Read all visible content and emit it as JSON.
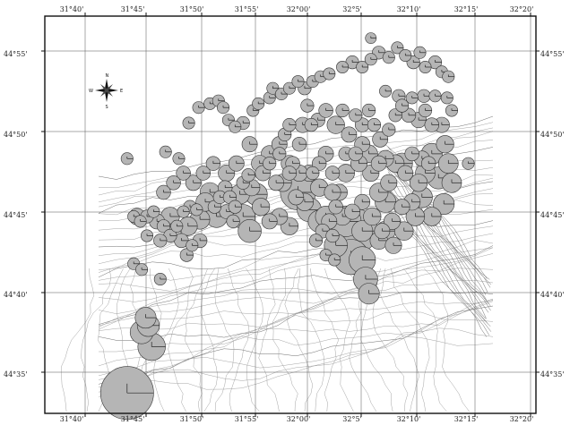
{
  "map": {
    "lon_ticks": [
      "31°40'",
      "31°45'",
      "31°50'",
      "31°55'",
      "32°00'",
      "32°5'",
      "32°10'",
      "32°15'",
      "32°20'"
    ],
    "lat_ticks": [
      "44°55'",
      "44°50'",
      "44°45'",
      "44°40'",
      "44°35'"
    ],
    "compass": {
      "n": "N",
      "s": "S",
      "e": "E",
      "w": "W"
    },
    "colors": {
      "circle_fill": "#b5b5b5",
      "circle_stroke": "#333333",
      "contour": "#9a9a9a",
      "grid": "#555555"
    },
    "stations": [
      [
        31.73,
        44.562,
        4.2
      ],
      [
        31.752,
        44.625,
        1.5
      ],
      [
        31.758,
        44.64,
        1.3
      ],
      [
        31.767,
        44.61,
        1.9
      ],
      [
        31.762,
        44.632,
        1.4
      ],
      [
        31.74,
        44.696,
        0.5
      ],
      [
        31.752,
        44.69,
        0.5
      ],
      [
        31.78,
        44.68,
        0.5
      ],
      [
        31.73,
        44.805,
        0.5
      ],
      [
        31.788,
        44.812,
        0.5
      ],
      [
        31.808,
        44.805,
        0.5
      ],
      [
        31.823,
        44.842,
        0.5
      ],
      [
        31.838,
        44.858,
        0.5
      ],
      [
        31.855,
        44.862,
        0.5
      ],
      [
        31.868,
        44.865,
        0.5
      ],
      [
        31.875,
        44.858,
        0.5
      ],
      [
        31.883,
        44.845,
        0.5
      ],
      [
        31.893,
        44.838,
        0.5
      ],
      [
        31.905,
        44.842,
        0.6
      ],
      [
        31.92,
        44.855,
        0.5
      ],
      [
        31.928,
        44.862,
        0.5
      ],
      [
        31.945,
        44.868,
        0.5
      ],
      [
        31.95,
        44.878,
        0.5
      ],
      [
        31.963,
        44.872,
        0.5
      ],
      [
        31.975,
        44.878,
        0.5
      ],
      [
        31.988,
        44.885,
        0.5
      ],
      [
        31.998,
        44.878,
        0.6
      ],
      [
        32.01,
        44.885,
        0.5
      ],
      [
        32.022,
        44.89,
        0.5
      ],
      [
        32.035,
        44.893,
        0.5
      ],
      [
        32.055,
        44.9,
        0.5
      ],
      [
        32.07,
        44.905,
        0.6
      ],
      [
        32.085,
        44.9,
        0.5
      ],
      [
        32.098,
        44.908,
        0.5
      ],
      [
        32.11,
        44.915,
        0.6
      ],
      [
        32.125,
        44.91,
        0.5
      ],
      [
        32.138,
        44.92,
        0.5
      ],
      [
        32.15,
        44.912,
        0.5
      ],
      [
        32.162,
        44.905,
        0.6
      ],
      [
        32.172,
        44.915,
        0.5
      ],
      [
        32.18,
        44.9,
        0.5
      ],
      [
        32.195,
        44.905,
        0.6
      ],
      [
        32.205,
        44.895,
        0.5
      ],
      [
        32.215,
        44.89,
        0.5
      ],
      [
        32.098,
        44.93,
        0.4
      ],
      [
        32.12,
        44.875,
        0.5
      ],
      [
        32.14,
        44.87,
        0.6
      ],
      [
        32.16,
        44.868,
        0.5
      ],
      [
        32.178,
        44.87,
        0.6
      ],
      [
        32.195,
        44.87,
        0.5
      ],
      [
        32.213,
        44.868,
        0.5
      ],
      [
        32.22,
        44.855,
        0.5
      ],
      [
        32.245,
        44.8,
        0.5
      ],
      [
        32.205,
        44.84,
        0.8
      ],
      [
        32.21,
        44.82,
        1.0
      ],
      [
        32.215,
        44.8,
        1.2
      ],
      [
        32.2,
        44.785,
        1.4
      ],
      [
        32.208,
        44.758,
        1.3
      ],
      [
        32.22,
        44.78,
        1.2
      ],
      [
        32.19,
        44.745,
        1.1
      ],
      [
        31.74,
        44.745,
        0.5
      ],
      [
        31.75,
        44.74,
        0.5
      ],
      [
        31.76,
        44.745,
        0.6
      ],
      [
        31.77,
        44.75,
        0.5
      ],
      [
        31.775,
        44.74,
        0.8
      ],
      [
        31.785,
        44.735,
        0.6
      ],
      [
        31.795,
        44.745,
        1.1
      ],
      [
        31.795,
        44.725,
        0.6
      ],
      [
        31.805,
        44.735,
        0.5
      ],
      [
        31.812,
        44.72,
        0.7
      ],
      [
        31.82,
        44.705,
        0.6
      ],
      [
        31.828,
        44.715,
        0.5
      ],
      [
        31.815,
        44.75,
        0.5
      ],
      [
        31.825,
        44.755,
        0.6
      ],
      [
        31.835,
        44.752,
        0.5
      ],
      [
        31.84,
        44.742,
        1.2
      ],
      [
        31.848,
        44.76,
        1.1
      ],
      [
        31.855,
        44.77,
        1.2
      ],
      [
        31.862,
        44.755,
        0.6
      ],
      [
        31.87,
        44.765,
        0.6
      ],
      [
        31.878,
        44.775,
        0.7
      ],
      [
        31.885,
        44.765,
        0.6
      ],
      [
        31.893,
        44.755,
        0.6
      ],
      [
        31.9,
        44.768,
        1.2
      ],
      [
        31.905,
        44.78,
        0.6
      ],
      [
        31.913,
        44.788,
        0.6
      ],
      [
        31.918,
        44.775,
        0.9
      ],
      [
        31.925,
        44.768,
        1.4
      ],
      [
        31.935,
        44.79,
        0.8
      ],
      [
        31.945,
        44.8,
        0.6
      ],
      [
        31.955,
        44.78,
        0.8
      ],
      [
        31.96,
        44.81,
        0.6
      ],
      [
        31.968,
        44.83,
        0.6
      ],
      [
        31.975,
        44.84,
        0.6
      ],
      [
        31.98,
        44.8,
        0.7
      ],
      [
        31.99,
        44.82,
        0.7
      ],
      [
        31.995,
        44.84,
        0.8
      ],
      [
        32.002,
        44.86,
        0.6
      ],
      [
        32.008,
        44.84,
        0.6
      ],
      [
        32.018,
        44.845,
        0.7
      ],
      [
        32.03,
        44.855,
        0.7
      ],
      [
        32.045,
        44.84,
        1.0
      ],
      [
        32.055,
        44.855,
        0.6
      ],
      [
        32.065,
        44.83,
        0.8
      ],
      [
        32.075,
        44.85,
        0.6
      ],
      [
        32.085,
        44.84,
        0.7
      ],
      [
        32.095,
        44.855,
        0.6
      ],
      [
        32.103,
        44.84,
        0.6
      ],
      [
        32.112,
        44.825,
        0.8
      ],
      [
        32.125,
        44.835,
        0.6
      ],
      [
        32.135,
        44.85,
        0.6
      ],
      [
        32.145,
        44.86,
        0.6
      ],
      [
        32.155,
        44.85,
        0.7
      ],
      [
        32.17,
        44.845,
        0.8
      ],
      [
        32.18,
        44.855,
        0.6
      ],
      [
        32.19,
        44.84,
        0.7
      ],
      [
        31.965,
        44.78,
        1.0
      ],
      [
        31.975,
        44.79,
        0.7
      ],
      [
        31.985,
        44.765,
        0.8
      ],
      [
        31.998,
        44.76,
        1.0
      ],
      [
        32.01,
        44.79,
        0.6
      ],
      [
        32.02,
        44.8,
        0.7
      ],
      [
        32.03,
        44.81,
        0.8
      ],
      [
        32.04,
        44.79,
        0.7
      ],
      [
        32.05,
        44.77,
        0.9
      ],
      [
        32.06,
        44.81,
        0.7
      ],
      [
        32.075,
        44.81,
        0.7
      ],
      [
        32.085,
        44.82,
        0.8
      ],
      [
        32.098,
        44.79,
        0.9
      ],
      [
        32.11,
        44.8,
        0.8
      ],
      [
        32.12,
        44.805,
        0.9
      ],
      [
        32.135,
        44.8,
        1.0
      ],
      [
        32.15,
        44.79,
        0.8
      ],
      [
        32.16,
        44.81,
        0.7
      ],
      [
        32.175,
        44.805,
        0.8
      ],
      [
        32.185,
        44.8,
        0.7
      ],
      [
        32.17,
        44.78,
        1.0
      ],
      [
        32.16,
        44.76,
        0.9
      ],
      [
        32.145,
        44.755,
        0.8
      ],
      [
        32.13,
        44.74,
        0.9
      ],
      [
        32.115,
        44.73,
        0.8
      ],
      [
        32.1,
        44.745,
        1.0
      ],
      [
        32.085,
        44.76,
        0.8
      ],
      [
        32.07,
        44.75,
        0.8
      ],
      [
        32.055,
        44.745,
        1.0
      ],
      [
        32.045,
        44.755,
        0.7
      ],
      [
        32.035,
        44.74,
        0.8
      ],
      [
        32.04,
        44.725,
        0.6
      ],
      [
        32.025,
        44.73,
        0.7
      ],
      [
        32.015,
        44.72,
        0.6
      ],
      [
        32.03,
        44.705,
        0.5
      ],
      [
        32.043,
        44.7,
        0.5
      ],
      [
        31.745,
        44.745,
        0.9
      ],
      [
        31.76,
        44.725,
        0.5
      ],
      [
        31.78,
        44.72,
        0.6
      ],
      [
        31.8,
        44.73,
        0.8
      ],
      [
        31.822,
        44.735,
        1.1
      ],
      [
        31.84,
        44.72,
        0.7
      ],
      [
        31.865,
        44.745,
        1.4
      ],
      [
        31.88,
        44.75,
        0.7
      ],
      [
        31.89,
        44.74,
        0.6
      ],
      [
        31.905,
        44.745,
        1.6
      ],
      [
        31.915,
        44.73,
        1.5
      ],
      [
        31.932,
        44.755,
        1.0
      ],
      [
        31.945,
        44.74,
        0.8
      ],
      [
        31.96,
        44.745,
        0.9
      ],
      [
        31.975,
        44.735,
        1.0
      ],
      [
        31.988,
        44.77,
        2.6
      ],
      [
        32.005,
        44.752,
        1.6
      ],
      [
        32.02,
        44.74,
        1.4
      ],
      [
        32.03,
        44.745,
        1.3
      ],
      [
        32.045,
        44.715,
        1.5
      ],
      [
        32.06,
        44.74,
        2.2
      ],
      [
        32.075,
        44.73,
        3.4
      ],
      [
        32.068,
        44.703,
        2.6
      ],
      [
        32.085,
        44.7,
        1.8
      ],
      [
        32.09,
        44.68,
        1.6
      ],
      [
        32.095,
        44.665,
        1.3
      ],
      [
        32.085,
        44.73,
        1.3
      ],
      [
        32.11,
        44.72,
        1.0
      ],
      [
        32.12,
        44.73,
        1.2
      ],
      [
        32.132,
        44.715,
        0.9
      ],
      [
        32.148,
        44.73,
        1.1
      ],
      [
        32.165,
        44.745,
        1.1
      ],
      [
        32.175,
        44.765,
        1.3
      ],
      [
        32.18,
        44.79,
        1.2
      ],
      [
        32.19,
        44.81,
        1.3
      ],
      [
        32.11,
        44.77,
        1.1
      ],
      [
        32.12,
        44.76,
        1.3
      ],
      [
        32.125,
        44.78,
        0.9
      ],
      [
        32.145,
        44.8,
        1.3
      ],
      [
        32.095,
        44.81,
        1.0
      ],
      [
        32.08,
        44.8,
        0.9
      ],
      [
        32.06,
        44.79,
        1.0
      ],
      [
        32.04,
        44.77,
        0.9
      ],
      [
        32.02,
        44.775,
        1.0
      ],
      [
        32.005,
        44.79,
        0.9
      ],
      [
        31.99,
        44.79,
        0.9
      ],
      [
        31.975,
        44.8,
        0.9
      ],
      [
        31.96,
        44.82,
        0.8
      ],
      [
        31.945,
        44.81,
        0.9
      ],
      [
        31.93,
        44.8,
        0.9
      ],
      [
        31.915,
        44.82,
        0.8
      ],
      [
        31.895,
        44.8,
        0.8
      ],
      [
        31.88,
        44.79,
        0.9
      ],
      [
        31.86,
        44.8,
        0.7
      ],
      [
        31.845,
        44.79,
        0.7
      ],
      [
        31.83,
        44.78,
        0.8
      ],
      [
        31.815,
        44.79,
        0.7
      ],
      [
        31.8,
        44.78,
        0.7
      ],
      [
        31.785,
        44.77,
        0.7
      ]
    ]
  }
}
